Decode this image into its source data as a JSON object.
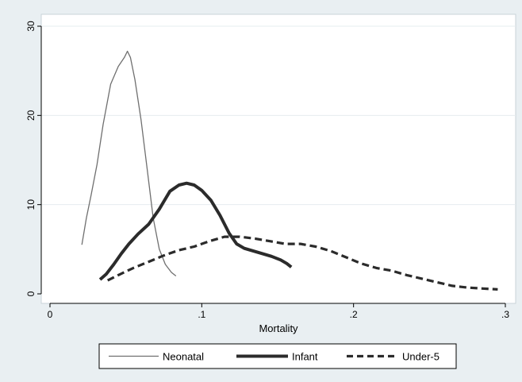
{
  "chart_data": {
    "type": "line",
    "title": "",
    "xlabel": "Mortality",
    "ylabel": "",
    "xlim": [
      0,
      0.3
    ],
    "ylim": [
      0,
      30
    ],
    "grid": true,
    "legend_position": "bottom",
    "x_ticks": [
      0,
      0.1,
      0.2,
      0.3
    ],
    "x_tick_labels": [
      "0",
      ".1",
      ".2",
      ".3"
    ],
    "y_ticks": [
      0,
      10,
      20,
      30
    ],
    "y_tick_labels": [
      "0",
      "10",
      "20",
      "30"
    ],
    "series": [
      {
        "name": "Neonatal",
        "style": "thin",
        "color": "#6f6f6f",
        "x": [
          0.021,
          0.024,
          0.027,
          0.031,
          0.035,
          0.04,
          0.045,
          0.049,
          0.051,
          0.053,
          0.056,
          0.06,
          0.064,
          0.068,
          0.072,
          0.076,
          0.08,
          0.083
        ],
        "y": [
          5.5,
          8.5,
          11.0,
          14.5,
          19.0,
          23.5,
          25.5,
          26.5,
          27.2,
          26.5,
          24.0,
          19.5,
          14.0,
          8.5,
          5.0,
          3.3,
          2.4,
          2.0
        ]
      },
      {
        "name": "Infant",
        "style": "thick",
        "color": "#2b2b2b",
        "x": [
          0.033,
          0.037,
          0.042,
          0.047,
          0.052,
          0.058,
          0.065,
          0.072,
          0.079,
          0.085,
          0.09,
          0.095,
          0.1,
          0.106,
          0.112,
          0.118,
          0.123,
          0.128,
          0.134,
          0.14,
          0.146,
          0.152,
          0.156,
          0.159
        ],
        "y": [
          1.6,
          2.2,
          3.3,
          4.5,
          5.6,
          6.7,
          7.8,
          9.5,
          11.5,
          12.2,
          12.4,
          12.2,
          11.6,
          10.5,
          8.8,
          6.8,
          5.6,
          5.1,
          4.8,
          4.5,
          4.2,
          3.8,
          3.4,
          3.0
        ]
      },
      {
        "name": "Under-5",
        "style": "dashed",
        "color": "#2b2b2b",
        "x": [
          0.038,
          0.045,
          0.055,
          0.065,
          0.075,
          0.085,
          0.095,
          0.105,
          0.115,
          0.125,
          0.135,
          0.145,
          0.155,
          0.165,
          0.175,
          0.185,
          0.195,
          0.205,
          0.215,
          0.225,
          0.235,
          0.245,
          0.255,
          0.265,
          0.275,
          0.285,
          0.295
        ],
        "y": [
          1.5,
          2.1,
          2.9,
          3.6,
          4.3,
          4.9,
          5.3,
          5.9,
          6.4,
          6.4,
          6.2,
          5.9,
          5.6,
          5.6,
          5.3,
          4.8,
          4.1,
          3.4,
          2.9,
          2.6,
          2.1,
          1.7,
          1.3,
          0.9,
          0.7,
          0.6,
          0.5
        ]
      }
    ]
  }
}
